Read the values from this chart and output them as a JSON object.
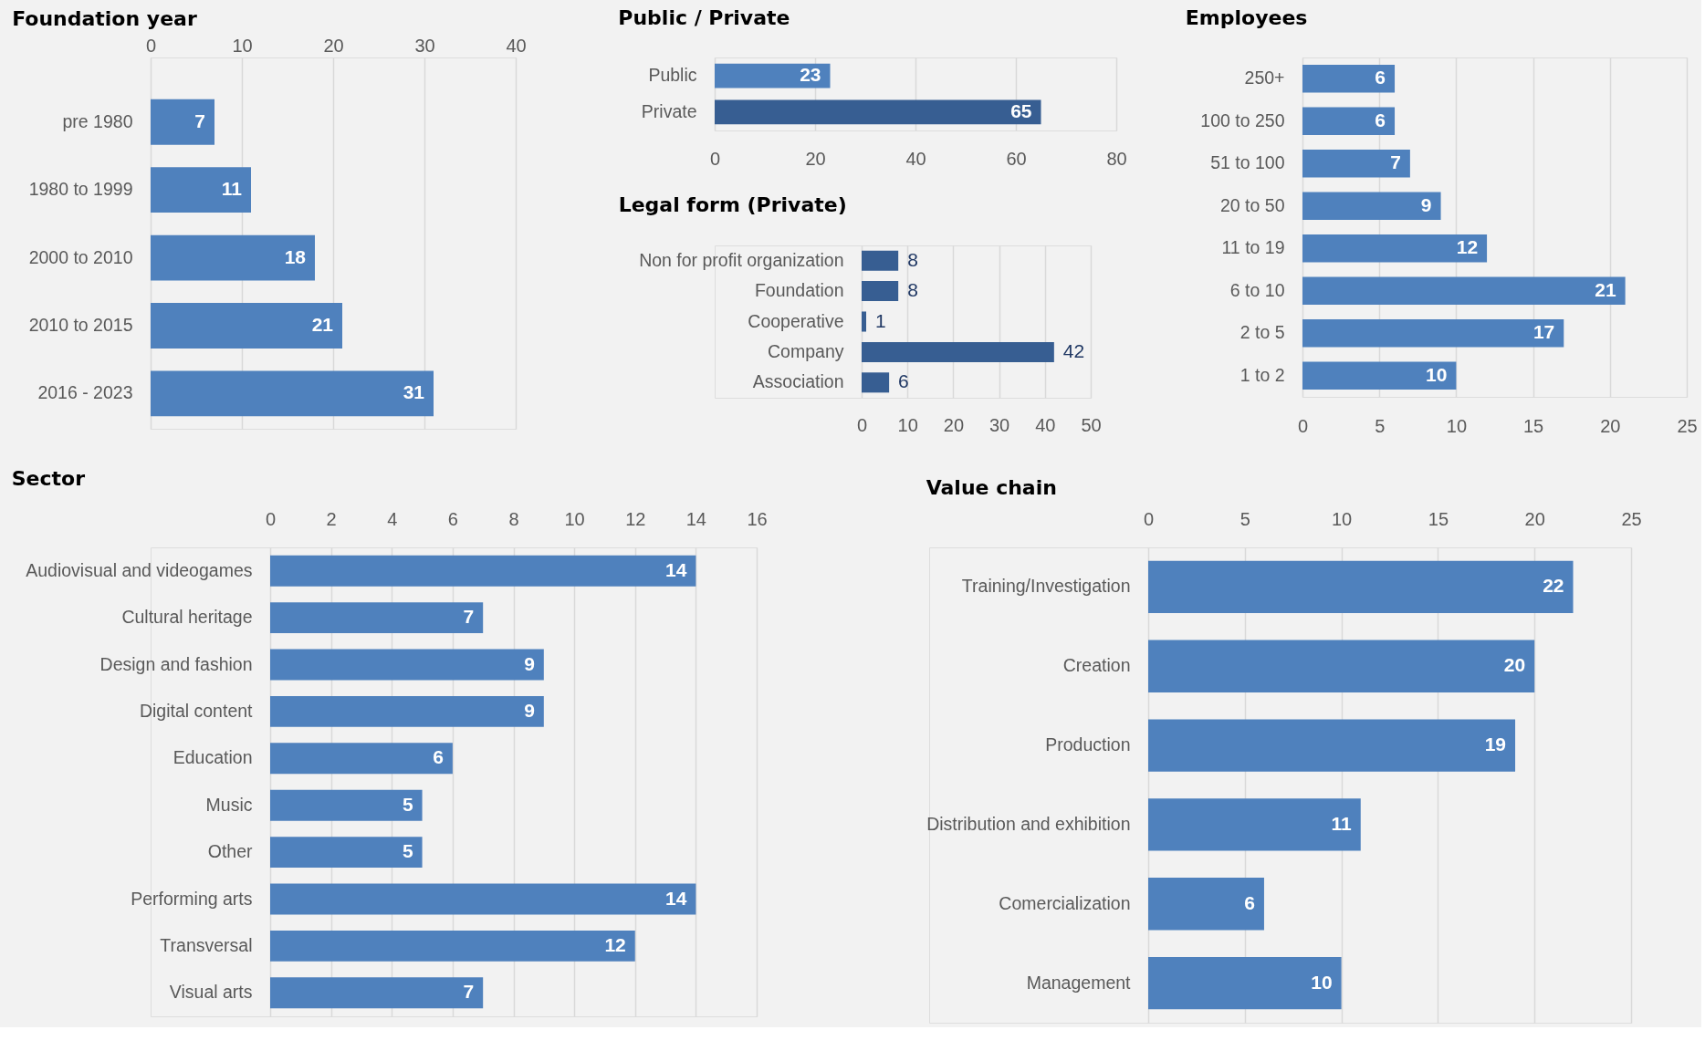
{
  "chart_data": [
    {
      "type": "bar",
      "orientation": "horizontal",
      "title": "Foundation year",
      "categories": [
        "pre 1980",
        "1980 to 1999",
        "2000 to 2010",
        "2010 to 2015",
        "2016 - 2023"
      ],
      "values": [
        7,
        11,
        18,
        21,
        31
      ],
      "color": "#4f81bd",
      "xlim": [
        0,
        40
      ],
      "xticks": [
        0,
        10,
        20,
        30,
        40
      ],
      "grid": "x",
      "data_labels": true
    },
    {
      "type": "bar",
      "orientation": "horizontal",
      "title": "Public / Private",
      "categories": [
        "Public",
        "Private"
      ],
      "values": [
        23,
        65
      ],
      "colors": [
        "#4f81bd",
        "#375e92"
      ],
      "xlim": [
        0,
        80
      ],
      "xticks": [
        0,
        20,
        40,
        60,
        80
      ],
      "grid": "x",
      "data_labels": true
    },
    {
      "type": "bar",
      "orientation": "horizontal",
      "title": "Legal form (Private)",
      "categories": [
        "Non for profit organization",
        "Foundation",
        "Cooperative",
        "Company",
        "Association"
      ],
      "values": [
        8,
        8,
        1,
        42,
        6
      ],
      "color": "#375e92",
      "xlim": [
        0,
        50
      ],
      "xticks": [
        0,
        10,
        20,
        30,
        40,
        50
      ],
      "grid": "x",
      "data_labels": true
    },
    {
      "type": "bar",
      "orientation": "horizontal",
      "title": "Employees",
      "categories": [
        "250+",
        "100 to 250",
        "51 to 100",
        "20 to 50",
        "11 to 19",
        "6 to 10",
        "2 to 5",
        "1 to 2"
      ],
      "values": [
        6,
        6,
        7,
        9,
        12,
        21,
        17,
        10
      ],
      "color": "#4f81bd",
      "xlim": [
        0,
        25
      ],
      "xticks": [
        0,
        5,
        10,
        15,
        20,
        25
      ],
      "grid": "x",
      "data_labels": true
    },
    {
      "type": "bar",
      "orientation": "horizontal",
      "title": "Sector",
      "categories": [
        "Audiovisual and videogames",
        "Cultural heritage",
        "Design and fashion",
        "Digital content",
        "Education",
        "Music",
        "Other",
        "Performing arts",
        "Transversal",
        "Visual arts"
      ],
      "values": [
        14,
        7,
        9,
        9,
        6,
        5,
        5,
        14,
        12,
        7
      ],
      "color": "#4f81bd",
      "xlim": [
        0,
        16
      ],
      "xticks": [
        0,
        2,
        4,
        6,
        8,
        10,
        12,
        14,
        16
      ],
      "grid": "x",
      "data_labels": true
    },
    {
      "type": "bar",
      "orientation": "horizontal",
      "title": "Value chain",
      "categories": [
        "Training/Investigation",
        "Creation",
        "Production",
        "Distribution and exhibition",
        "Comercialization",
        "Management"
      ],
      "values": [
        22,
        20,
        19,
        11,
        6,
        10
      ],
      "color": "#4f81bd",
      "xlim": [
        0,
        25
      ],
      "xticks": [
        0,
        5,
        10,
        15,
        20,
        25
      ],
      "grid": "x",
      "data_labels": true
    }
  ]
}
